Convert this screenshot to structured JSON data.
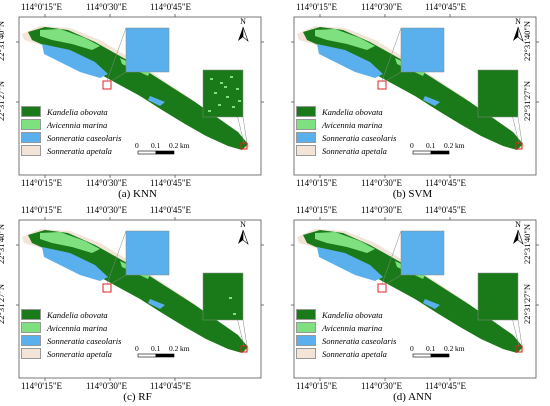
{
  "colors": {
    "kandelia": "#1a7a1a",
    "avicennia": "#7ee07e",
    "sonneratia_caseolaris": "#5ab0ec",
    "sonneratia_apetala": "#f2e4d6",
    "highlight": "#e02020"
  },
  "legend": [
    {
      "label": "Kandelia obovata",
      "color": "#1a7a1a"
    },
    {
      "label": "Avicennia marina",
      "color": "#7ee07e"
    },
    {
      "label": "Sonneratia caseolaris",
      "color": "#5ab0ec"
    },
    {
      "label": "Sonneratia apetala",
      "color": "#f2e4d6"
    }
  ],
  "axes": {
    "top_ticks": [
      "114°0'15\"E",
      "114°0'30\"E",
      "114°0'45\"E"
    ],
    "bottom_ticks": [
      "114°0'15\"E",
      "114°0'30\"E",
      "114°0'45\"E"
    ],
    "lat_ticks": [
      "22°31'40\"N",
      "22°31'27\"N"
    ]
  },
  "scale_bar": {
    "labels": [
      "0",
      "0.1",
      "0.2"
    ],
    "unit": "km"
  },
  "north_label": "N",
  "panels": [
    {
      "caption": "(a) KNN"
    },
    {
      "caption": "(b) SVM"
    },
    {
      "caption": "(c) RF"
    },
    {
      "caption": "(d) ANN"
    }
  ]
}
